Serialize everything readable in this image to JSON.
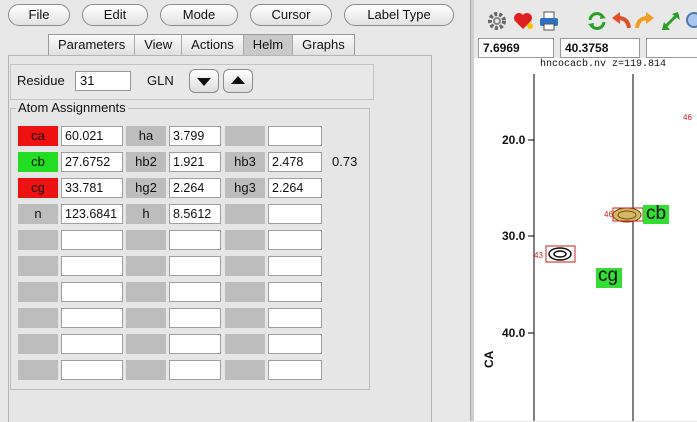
{
  "menu": {
    "file": "File",
    "edit": "Edit",
    "mode": "Mode",
    "cursor": "Cursor",
    "label_type": "Label Type"
  },
  "tabs": [
    "Parameters",
    "View",
    "Actions",
    "Helm",
    "Graphs"
  ],
  "active_tab": "Helm",
  "residue": {
    "label": "Residue",
    "number": "31",
    "name": "GLN"
  },
  "atom_assignments": {
    "title": "Atom Assignments",
    "rows": [
      {
        "a1": "ca",
        "v1": "60.021",
        "a2": "ha",
        "v2": "3.799",
        "a3": "",
        "v3": "",
        "extra": "",
        "c1": "#ee1111"
      },
      {
        "a1": "cb",
        "v1": "27.6752",
        "a2": "hb2",
        "v2": "1.921",
        "a3": "hb3",
        "v3": "2.478",
        "extra": "0.73",
        "c1": "#22dd22"
      },
      {
        "a1": "cg",
        "v1": "33.781",
        "a2": "hg2",
        "v2": "2.264",
        "a3": "hg3",
        "v3": "2.264",
        "extra": "",
        "c1": "#ee1111"
      },
      {
        "a1": "n",
        "v1": "123.6841",
        "a2": "h",
        "v2": "8.5612",
        "a3": "",
        "v3": "",
        "extra": "",
        "c1": ""
      },
      {
        "a1": "",
        "v1": "",
        "a2": "",
        "v2": "",
        "a3": "",
        "v3": "",
        "extra": "",
        "c1": ""
      },
      {
        "a1": "",
        "v1": "",
        "a2": "",
        "v2": "",
        "a3": "",
        "v3": "",
        "extra": "",
        "c1": ""
      },
      {
        "a1": "",
        "v1": "",
        "a2": "",
        "v2": "",
        "a3": "",
        "v3": "",
        "extra": "",
        "c1": ""
      },
      {
        "a1": "",
        "v1": "",
        "a2": "",
        "v2": "",
        "a3": "",
        "v3": "",
        "extra": "",
        "c1": ""
      },
      {
        "a1": "",
        "v1": "",
        "a2": "",
        "v2": "",
        "a3": "",
        "v3": "",
        "extra": "",
        "c1": ""
      },
      {
        "a1": "",
        "v1": "",
        "a2": "",
        "v2": "",
        "a3": "",
        "v3": "",
        "extra": "",
        "c1": ""
      }
    ]
  },
  "spectrum": {
    "coord_x": "7.6969",
    "coord_y": "40.3758",
    "title": "hncocacb.nv z=119.814",
    "axis_label": "CA",
    "ticks": [
      "20.0",
      "30.0",
      "40.0"
    ],
    "peak_labels": {
      "top_right": "46",
      "mid": "46",
      "left": "43"
    },
    "assign_cb": "cb",
    "assign_cg": "cg"
  }
}
